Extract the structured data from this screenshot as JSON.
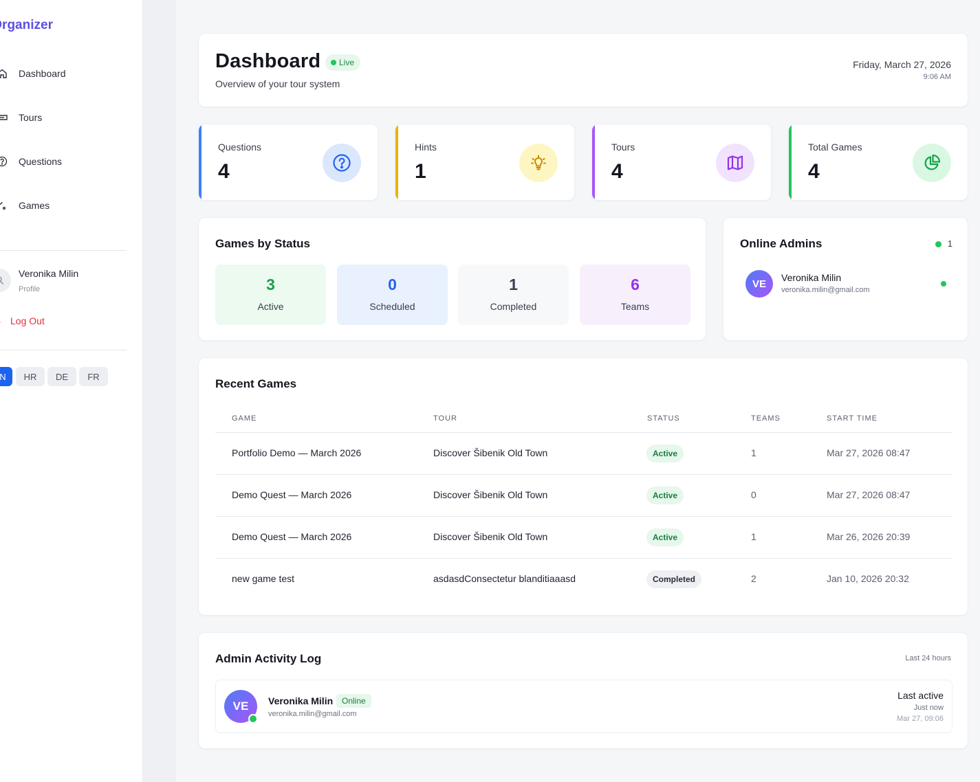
{
  "sidebar": {
    "brand": "ur Organizer",
    "nav": [
      {
        "label": "Dashboard",
        "icon": "home-icon"
      },
      {
        "label": "Tours",
        "icon": "ticket-icon"
      },
      {
        "label": "Questions",
        "icon": "question-circle-icon"
      },
      {
        "label": "Games",
        "icon": "route-icon"
      }
    ],
    "profile": {
      "name": "Veronika Milin",
      "sub": "Profile"
    },
    "logout": "Log Out",
    "languages": [
      {
        "code": "N",
        "active": true
      },
      {
        "code": "HR",
        "active": false
      },
      {
        "code": "DE",
        "active": false
      },
      {
        "code": "FR",
        "active": false
      }
    ]
  },
  "header": {
    "title": "Dashboard",
    "badge": "Live",
    "subtitle": "Overview of your tour system",
    "date": "Friday, March 27, 2026",
    "time": "9:06 AM"
  },
  "stats": [
    {
      "label": "Questions",
      "value": "4",
      "icon": "question-circle-icon",
      "accent": "#3b82f6"
    },
    {
      "label": "Hints",
      "value": "1",
      "icon": "lightbulb-icon",
      "accent": "#eab308"
    },
    {
      "label": "Tours",
      "value": "4",
      "icon": "map-icon",
      "accent": "#a855f7"
    },
    {
      "label": "Total Games",
      "value": "4",
      "icon": "pie-chart-icon",
      "accent": "#22c55e"
    }
  ],
  "games_by_status": {
    "title": "Games by Status",
    "tiles": [
      {
        "value": "3",
        "label": "Active",
        "color": "#16a34a"
      },
      {
        "value": "0",
        "label": "Scheduled",
        "color": "#2563eb"
      },
      {
        "value": "1",
        "label": "Completed",
        "color": "#374151"
      },
      {
        "value": "6",
        "label": "Teams",
        "color": "#9333ea"
      }
    ]
  },
  "online_admins": {
    "title": "Online Admins",
    "count": "1",
    "admins": [
      {
        "initials": "VE",
        "name": "Veronika Milin",
        "email": "veronika.milin@gmail.com"
      }
    ]
  },
  "recent_games": {
    "title": "Recent Games",
    "columns": [
      "Game",
      "Tour",
      "Status",
      "Teams",
      "Start Time"
    ],
    "rows": [
      {
        "game": "Portfolio Demo — March 2026",
        "tour": "Discover Šibenik Old Town",
        "status": "Active",
        "teams": "1",
        "start": "Mar 27, 2026 08:47"
      },
      {
        "game": "Demo Quest — March 2026",
        "tour": "Discover Šibenik Old Town",
        "status": "Active",
        "teams": "0",
        "start": "Mar 27, 2026 08:47"
      },
      {
        "game": "Demo Quest — March 2026",
        "tour": "Discover Šibenik Old Town",
        "status": "Active",
        "teams": "1",
        "start": "Mar 26, 2026 20:39"
      },
      {
        "game": "new game test",
        "tour": "asdasdConsectetur blanditiaaasd",
        "status": "Completed",
        "teams": "2",
        "start": "Jan 10, 2026 20:32"
      }
    ]
  },
  "activity_log": {
    "title": "Admin Activity Log",
    "range": "Last 24 hours",
    "entries": [
      {
        "initials": "VE",
        "name": "Veronika Milin",
        "status": "Online",
        "email": "veronika.milin@gmail.com",
        "last_active_label": "Last active",
        "relative": "Just now",
        "timestamp": "Mar 27, 09:06"
      }
    ]
  }
}
